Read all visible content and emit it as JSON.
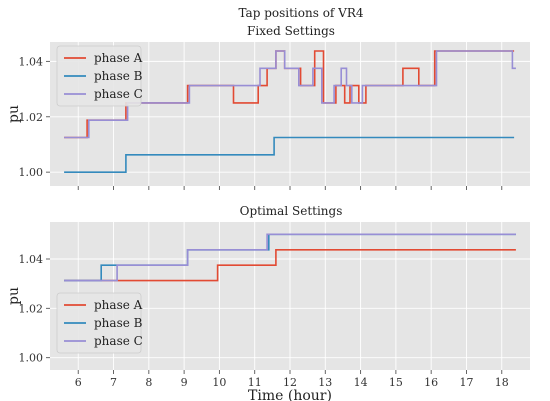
{
  "figure_title": "Tap positions of VR4",
  "colors": {
    "phase_a": "#e24a33",
    "phase_b": "#348abd",
    "phase_c": "#988ed5",
    "panel_bg": "#e5e5e5",
    "grid": "#ffffff"
  },
  "chart_data": [
    {
      "type": "line",
      "step": true,
      "title": "Fixed Settings",
      "xlabel": "",
      "ylabel": "pu",
      "xlim": [
        5.2,
        18.8
      ],
      "ylim": [
        0.995,
        1.047
      ],
      "x_ticks": [
        6,
        7,
        8,
        9,
        10,
        11,
        12,
        13,
        14,
        15,
        16,
        17,
        18
      ],
      "x_tick_labels_shown": false,
      "y_ticks": [
        1.0,
        1.02,
        1.04
      ],
      "y_tick_labels": [
        "1.00",
        "1.02",
        "1.04"
      ],
      "grid": true,
      "legend": "top-left",
      "series": [
        {
          "name": "phase A",
          "color_key": "phase_a",
          "points": [
            [
              5.6,
              1.0125
            ],
            [
              6.25,
              1.0125
            ],
            [
              6.25,
              1.01875
            ],
            [
              7.35,
              1.01875
            ],
            [
              7.35,
              1.025
            ],
            [
              9.1,
              1.025
            ],
            [
              9.1,
              1.03125
            ],
            [
              10.4,
              1.03125
            ],
            [
              10.4,
              1.025
            ],
            [
              11.1,
              1.025
            ],
            [
              11.1,
              1.03125
            ],
            [
              11.35,
              1.03125
            ],
            [
              11.35,
              1.0375
            ],
            [
              11.6,
              1.0375
            ],
            [
              11.6,
              1.04375
            ],
            [
              11.85,
              1.04375
            ],
            [
              11.85,
              1.0375
            ],
            [
              12.3,
              1.0375
            ],
            [
              12.3,
              1.03125
            ],
            [
              12.7,
              1.03125
            ],
            [
              12.7,
              1.04375
            ],
            [
              12.95,
              1.04375
            ],
            [
              12.95,
              1.025
            ],
            [
              13.3,
              1.025
            ],
            [
              13.3,
              1.03125
            ],
            [
              13.55,
              1.03125
            ],
            [
              13.55,
              1.025
            ],
            [
              13.7,
              1.025
            ],
            [
              13.7,
              1.03125
            ],
            [
              13.95,
              1.03125
            ],
            [
              13.95,
              1.025
            ],
            [
              14.15,
              1.025
            ],
            [
              14.15,
              1.03125
            ],
            [
              15.2,
              1.03125
            ],
            [
              15.2,
              1.0375
            ],
            [
              15.65,
              1.0375
            ],
            [
              15.65,
              1.03125
            ],
            [
              16.1,
              1.03125
            ],
            [
              16.1,
              1.04375
            ],
            [
              18.35,
              1.04375
            ]
          ]
        },
        {
          "name": "phase B",
          "color_key": "phase_b",
          "points": [
            [
              5.6,
              1.0
            ],
            [
              7.35,
              1.0
            ],
            [
              7.35,
              1.00625
            ],
            [
              11.55,
              1.00625
            ],
            [
              11.55,
              1.0125
            ],
            [
              18.35,
              1.0125
            ]
          ]
        },
        {
          "name": "phase C",
          "color_key": "phase_c",
          "points": [
            [
              5.6,
              1.0125
            ],
            [
              6.3,
              1.0125
            ],
            [
              6.3,
              1.01875
            ],
            [
              7.4,
              1.01875
            ],
            [
              7.4,
              1.025
            ],
            [
              9.15,
              1.025
            ],
            [
              9.15,
              1.03125
            ],
            [
              11.15,
              1.03125
            ],
            [
              11.15,
              1.0375
            ],
            [
              11.6,
              1.0375
            ],
            [
              11.6,
              1.04375
            ],
            [
              11.85,
              1.04375
            ],
            [
              11.85,
              1.0375
            ],
            [
              12.25,
              1.0375
            ],
            [
              12.25,
              1.03125
            ],
            [
              12.65,
              1.03125
            ],
            [
              12.65,
              1.0375
            ],
            [
              12.9,
              1.0375
            ],
            [
              12.9,
              1.025
            ],
            [
              13.25,
              1.025
            ],
            [
              13.25,
              1.03125
            ],
            [
              13.45,
              1.03125
            ],
            [
              13.45,
              1.0375
            ],
            [
              13.6,
              1.0375
            ],
            [
              13.6,
              1.03125
            ],
            [
              13.75,
              1.03125
            ],
            [
              13.75,
              1.025
            ],
            [
              14.05,
              1.025
            ],
            [
              14.05,
              1.03125
            ],
            [
              16.15,
              1.03125
            ],
            [
              16.15,
              1.04375
            ],
            [
              18.3,
              1.04375
            ],
            [
              18.3,
              1.0375
            ],
            [
              18.4,
              1.0375
            ]
          ]
        }
      ]
    },
    {
      "type": "line",
      "step": true,
      "title": "Optimal Settings",
      "xlabel": "Time (hour)",
      "ylabel": "pu",
      "xlim": [
        5.2,
        18.8
      ],
      "ylim": [
        0.995,
        1.055
      ],
      "x_ticks": [
        6,
        7,
        8,
        9,
        10,
        11,
        12,
        13,
        14,
        15,
        16,
        17,
        18
      ],
      "x_tick_labels": [
        "6",
        "7",
        "8",
        "9",
        "10",
        "11",
        "12",
        "13",
        "14",
        "15",
        "16",
        "17",
        "18"
      ],
      "y_ticks": [
        1.0,
        1.02,
        1.04
      ],
      "y_tick_labels": [
        "1.00",
        "1.02",
        "1.04"
      ],
      "grid": true,
      "legend": "bottom-left",
      "series": [
        {
          "name": "phase A",
          "color_key": "phase_a",
          "points": [
            [
              5.6,
              1.03125
            ],
            [
              7.1,
              1.03125
            ],
            [
              7.1,
              1.03125
            ],
            [
              9.95,
              1.03125
            ],
            [
              9.95,
              1.0375
            ],
            [
              11.6,
              1.0375
            ],
            [
              11.6,
              1.04375
            ],
            [
              18.4,
              1.04375
            ]
          ]
        },
        {
          "name": "phase B",
          "color_key": "phase_b",
          "points": [
            [
              5.6,
              1.03125
            ],
            [
              6.65,
              1.03125
            ],
            [
              6.65,
              1.0375
            ],
            [
              9.1,
              1.0375
            ],
            [
              9.1,
              1.04375
            ],
            [
              11.4,
              1.04375
            ],
            [
              11.4,
              1.05
            ],
            [
              18.4,
              1.05
            ]
          ]
        },
        {
          "name": "phase C",
          "color_key": "phase_c",
          "points": [
            [
              5.6,
              1.03125
            ],
            [
              7.1,
              1.03125
            ],
            [
              7.1,
              1.0375
            ],
            [
              9.1,
              1.0375
            ],
            [
              9.1,
              1.04375
            ],
            [
              11.35,
              1.04375
            ],
            [
              11.35,
              1.05
            ],
            [
              18.4,
              1.05
            ]
          ]
        }
      ]
    }
  ]
}
